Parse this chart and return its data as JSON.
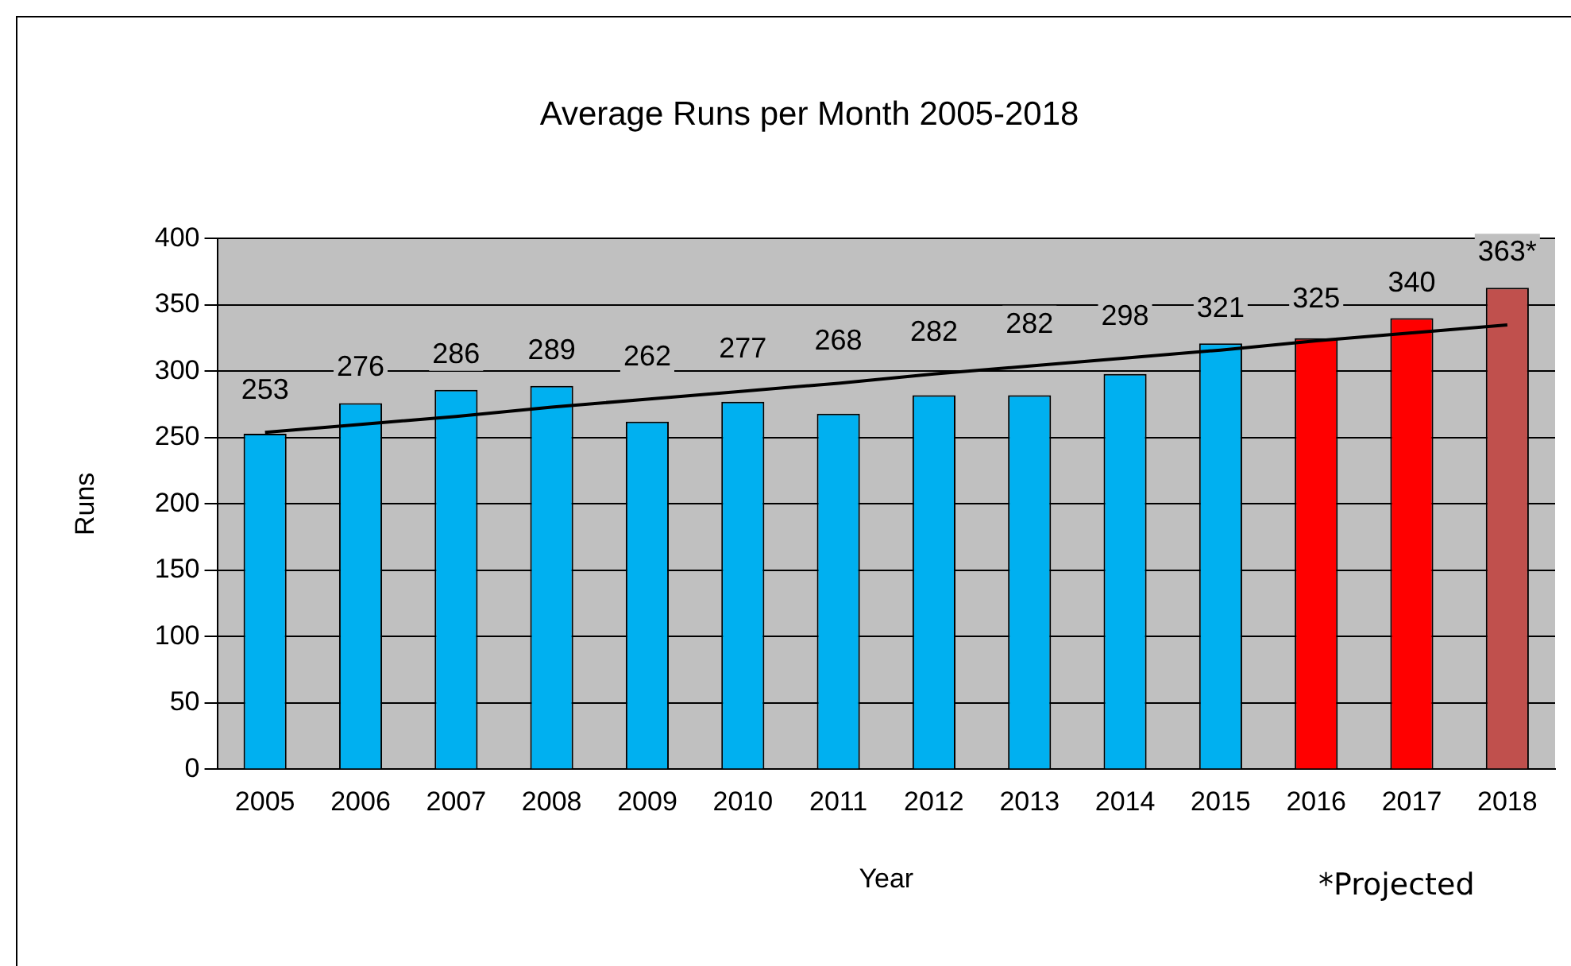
{
  "chart_data": {
    "type": "bar",
    "title": "Average Runs per Month 2005-2018",
    "xlabel": "Year",
    "ylabel": "Runs",
    "categories": [
      "2005",
      "2006",
      "2007",
      "2008",
      "2009",
      "2010",
      "2011",
      "2012",
      "2013",
      "2014",
      "2015",
      "2016",
      "2017",
      "2018"
    ],
    "series": [
      {
        "values": [
          253,
          276,
          286,
          289,
          262,
          277,
          268,
          282,
          282,
          298,
          321,
          325,
          340,
          363
        ],
        "colors": [
          "#00b0f0",
          "#00b0f0",
          "#00b0f0",
          "#00b0f0",
          "#00b0f0",
          "#00b0f0",
          "#00b0f0",
          "#00b0f0",
          "#00b0f0",
          "#00b0f0",
          "#00b0f0",
          "#ff0000",
          "#ff0000",
          "#c0504d"
        ],
        "value_labels": [
          "253",
          "276",
          "286",
          "289",
          "262",
          "277",
          "268",
          "282",
          "282",
          "298",
          "321",
          "325",
          "340",
          "363*"
        ]
      },
      {
        "type": "line",
        "values": [
          254,
          260,
          266,
          273,
          279,
          285,
          291,
          298,
          304,
          310,
          316,
          323,
          329,
          335
        ],
        "color": "#000000"
      }
    ],
    "ylim": [
      0,
      400
    ],
    "yticks": [
      0,
      50,
      100,
      150,
      200,
      250,
      300,
      350,
      400
    ],
    "grid": "y",
    "legend": false,
    "annotations": [
      "*Projected"
    ]
  }
}
